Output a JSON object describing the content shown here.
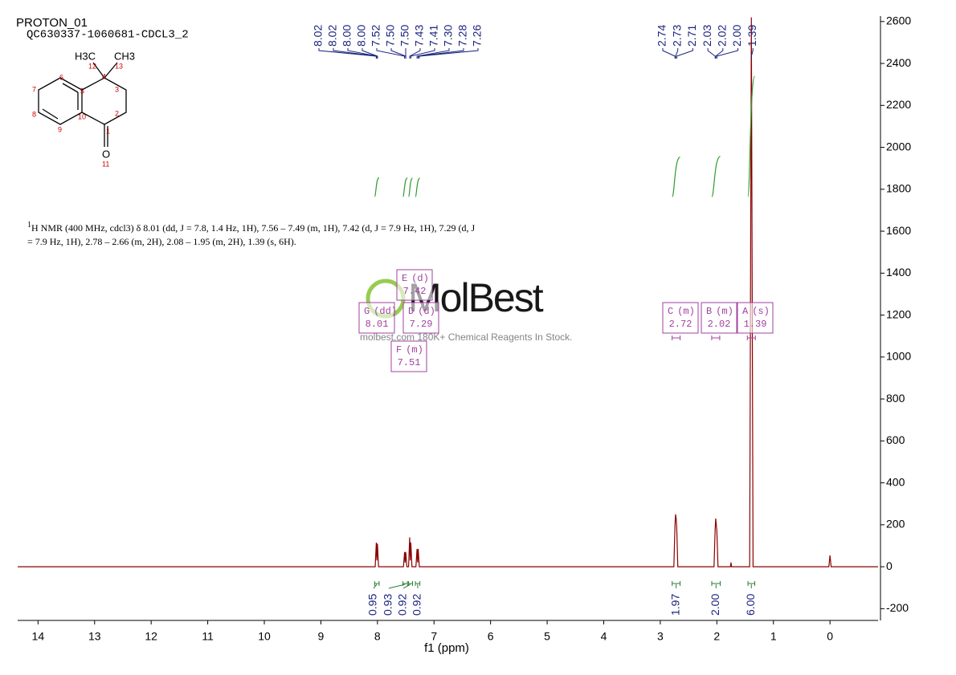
{
  "chart_data": {
    "type": "nmr",
    "title": "PROTON_01",
    "subtitle": "QC630337-1060681-CDCL3_2",
    "x_label": "f1 (ppm)",
    "xlim": [
      14.36,
      -0.85
    ],
    "ylim": [
      -256,
      2626
    ],
    "xticks": [
      14,
      13,
      12,
      11,
      10,
      9,
      8,
      7,
      6,
      5,
      4,
      3,
      2,
      1,
      0
    ],
    "yticks": [
      -200,
      0,
      200,
      400,
      600,
      800,
      1000,
      1200,
      1400,
      1600,
      1800,
      2000,
      2200,
      2400,
      2600
    ],
    "color": "#8b0000",
    "x": [
      14.36,
      8.04,
      8.02,
      8.01,
      8.0,
      7.98,
      7.54,
      7.52,
      7.51,
      7.5,
      7.48,
      7.45,
      7.43,
      7.42,
      7.41,
      7.39,
      7.32,
      7.3,
      7.29,
      7.28,
      7.26,
      2.76,
      2.74,
      2.73,
      2.72,
      2.71,
      2.69,
      2.05,
      2.03,
      2.02,
      2.01,
      2.0,
      1.98,
      1.76,
      1.75,
      1.74,
      1.42,
      1.39,
      1.36,
      0.02,
      0.0,
      -0.02,
      -0.85
    ],
    "values": [
      0,
      0,
      115,
      30,
      110,
      0,
      0,
      70,
      20,
      70,
      0,
      0,
      140,
      30,
      115,
      0,
      0,
      85,
      20,
      85,
      0,
      0,
      200,
      250,
      230,
      190,
      0,
      0,
      180,
      230,
      200,
      170,
      0,
      0,
      20,
      0,
      0,
      2620,
      0,
      0,
      54,
      0,
      0
    ],
    "peak_labels": [
      [
        {
          "value": 8.02,
          "label": "8.02"
        },
        {
          "value": 8.02,
          "label": "8.02"
        },
        {
          "value": 8.0,
          "label": "8.00"
        },
        {
          "value": 8.0,
          "label": "8.00"
        },
        {
          "value": 7.52,
          "label": "7.52"
        },
        {
          "value": 7.5,
          "label": "7.50"
        },
        {
          "value": 7.5,
          "label": "7.50"
        },
        {
          "value": 7.43,
          "label": "7.43"
        },
        {
          "value": 7.41,
          "label": "7.41"
        },
        {
          "value": 7.3,
          "label": "7.30"
        },
        {
          "value": 7.28,
          "label": "7.28"
        },
        {
          "value": 7.26,
          "label": "7.26"
        }
      ],
      [
        {
          "value": 2.74,
          "label": "2.74"
        },
        {
          "value": 2.73,
          "label": "2.73"
        },
        {
          "value": 2.71,
          "label": "2.71"
        },
        {
          "value": 2.03,
          "label": "2.03"
        },
        {
          "value": 2.02,
          "label": "2.02"
        },
        {
          "value": 2.0,
          "label": "2.00"
        },
        {
          "value": 1.39,
          "label": "1.39"
        }
      ]
    ],
    "integrals": [
      {
        "range": [
          8.05,
          7.97
        ],
        "value": 0.95
      },
      {
        "range": [
          7.55,
          7.47
        ],
        "value": 0.93
      },
      {
        "range": [
          7.45,
          7.38
        ],
        "value": 0.92
      },
      {
        "range": [
          7.33,
          7.25
        ],
        "value": 0.92
      },
      {
        "range": [
          2.79,
          2.65
        ],
        "value": 1.97
      },
      {
        "range": [
          2.09,
          1.94
        ],
        "value": 2.0,
        "label": "2.00"
      },
      {
        "range": [
          1.45,
          1.33
        ],
        "value": 6.0,
        "label": "6.00"
      }
    ],
    "multiplets": [
      {
        "letter": "G",
        "type": "(dd)",
        "shift": 8.01
      },
      {
        "letter": "E",
        "type": "(d)",
        "shift": 7.42
      },
      {
        "letter": "D",
        "type": "(d)",
        "shift": 7.29
      },
      {
        "letter": "F",
        "type": "(m)",
        "shift": 7.51
      },
      {
        "letter": "C",
        "type": "(m)",
        "shift": 2.72
      },
      {
        "letter": "B",
        "type": "(m)",
        "shift": 2.02
      },
      {
        "letter": "A",
        "type": "(s)",
        "shift": 1.39
      }
    ]
  },
  "description": {
    "superscript": "1",
    "text": "H NMR (400 MHz, cdcl3) δ 8.01 (dd, J = 7.8, 1.4 Hz, 1H), 7.56 – 7.49 (m, 1H), 7.42 (d, J = 7.9 Hz, 1H), 7.29 (d, J = 7.9 Hz, 1H), 2.78 – 2.66 (m, 2H), 2.08 – 1.95 (m, 2H), 1.39 (s, 6H)."
  },
  "molecule": {
    "methyl_left": "H3C",
    "methyl_right": "CH3",
    "oxygen": "O",
    "atom_numbers": [
      "1",
      "2",
      "3",
      "4",
      "5",
      "6",
      "7",
      "8",
      "9",
      "10",
      "11",
      "12",
      "13"
    ]
  },
  "watermark": {
    "brand": "MolBest",
    "tagline": "molbest.com 180K+ Chemical Reagents In Stock."
  }
}
